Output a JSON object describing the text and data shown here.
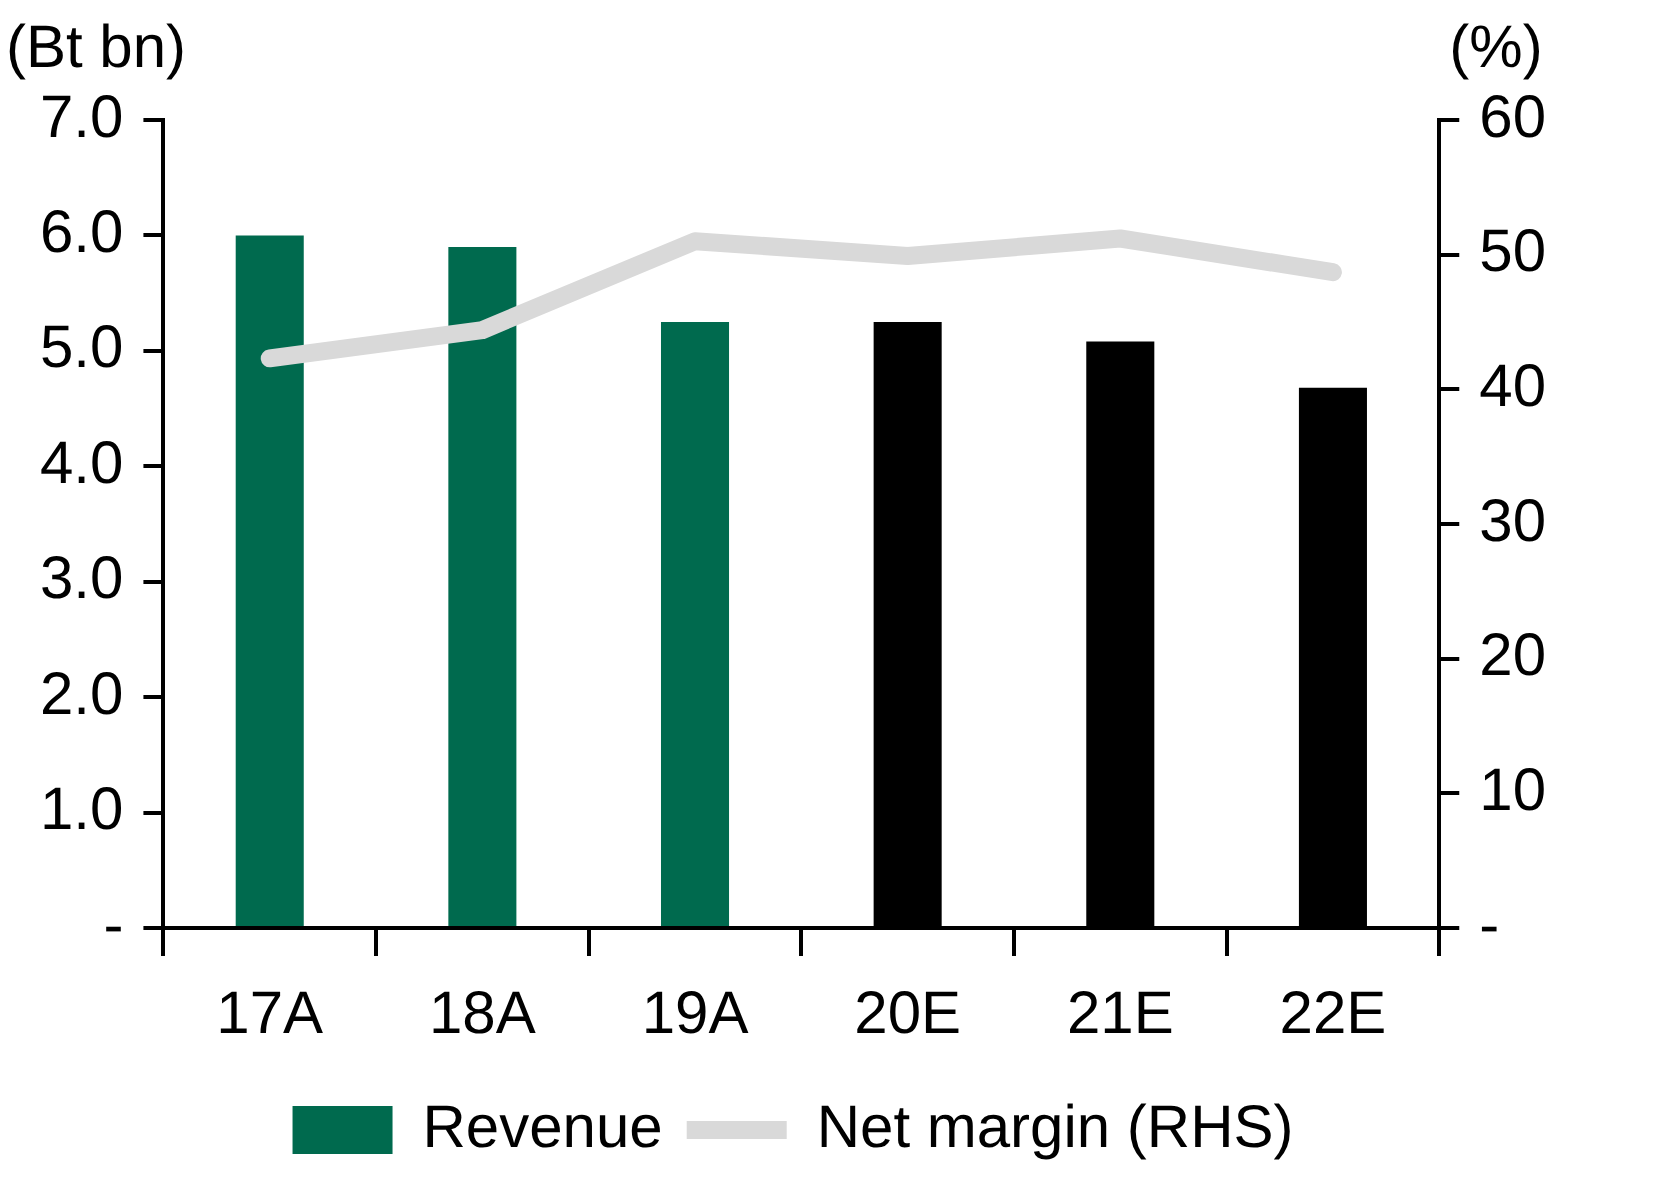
{
  "chart_data": {
    "type": "bar",
    "categories": [
      "17A",
      "18A",
      "19A",
      "20E",
      "21E",
      "22E"
    ],
    "ylabel": "(Bt bn)",
    "y2label": "(%)",
    "series": [
      {
        "name": "Revenue",
        "color": "#006a4e",
        "colors": [
          "#006a4e",
          "#006a4e",
          "#006a4e",
          "#000000",
          "#000000",
          "#000000"
        ],
        "values": [
          6.0,
          5.9,
          5.25,
          5.25,
          5.08,
          4.68
        ]
      },
      {
        "name": "Net margin (RHS)",
        "type": "line",
        "axis": "y2",
        "color": "#d9d9d9",
        "values": [
          42.3,
          44.4,
          51.0,
          49.9,
          51.2,
          48.7
        ]
      }
    ],
    "ylim": [
      0,
      7
    ],
    "yticks": [
      {
        "value": 0,
        "label": "-"
      },
      {
        "value": 1,
        "label": "1.0"
      },
      {
        "value": 2,
        "label": "2.0"
      },
      {
        "value": 3,
        "label": "3.0"
      },
      {
        "value": 4,
        "label": "4.0"
      },
      {
        "value": 5,
        "label": "5.0"
      },
      {
        "value": 6,
        "label": "6.0"
      },
      {
        "value": 7,
        "label": "7.0"
      }
    ],
    "y2lim": [
      0,
      60
    ],
    "y2ticks": [
      {
        "value": 0,
        "label": "-"
      },
      10,
      20,
      30,
      40,
      50,
      60
    ],
    "grid": false,
    "legend": "bottom",
    "marker": "none"
  }
}
